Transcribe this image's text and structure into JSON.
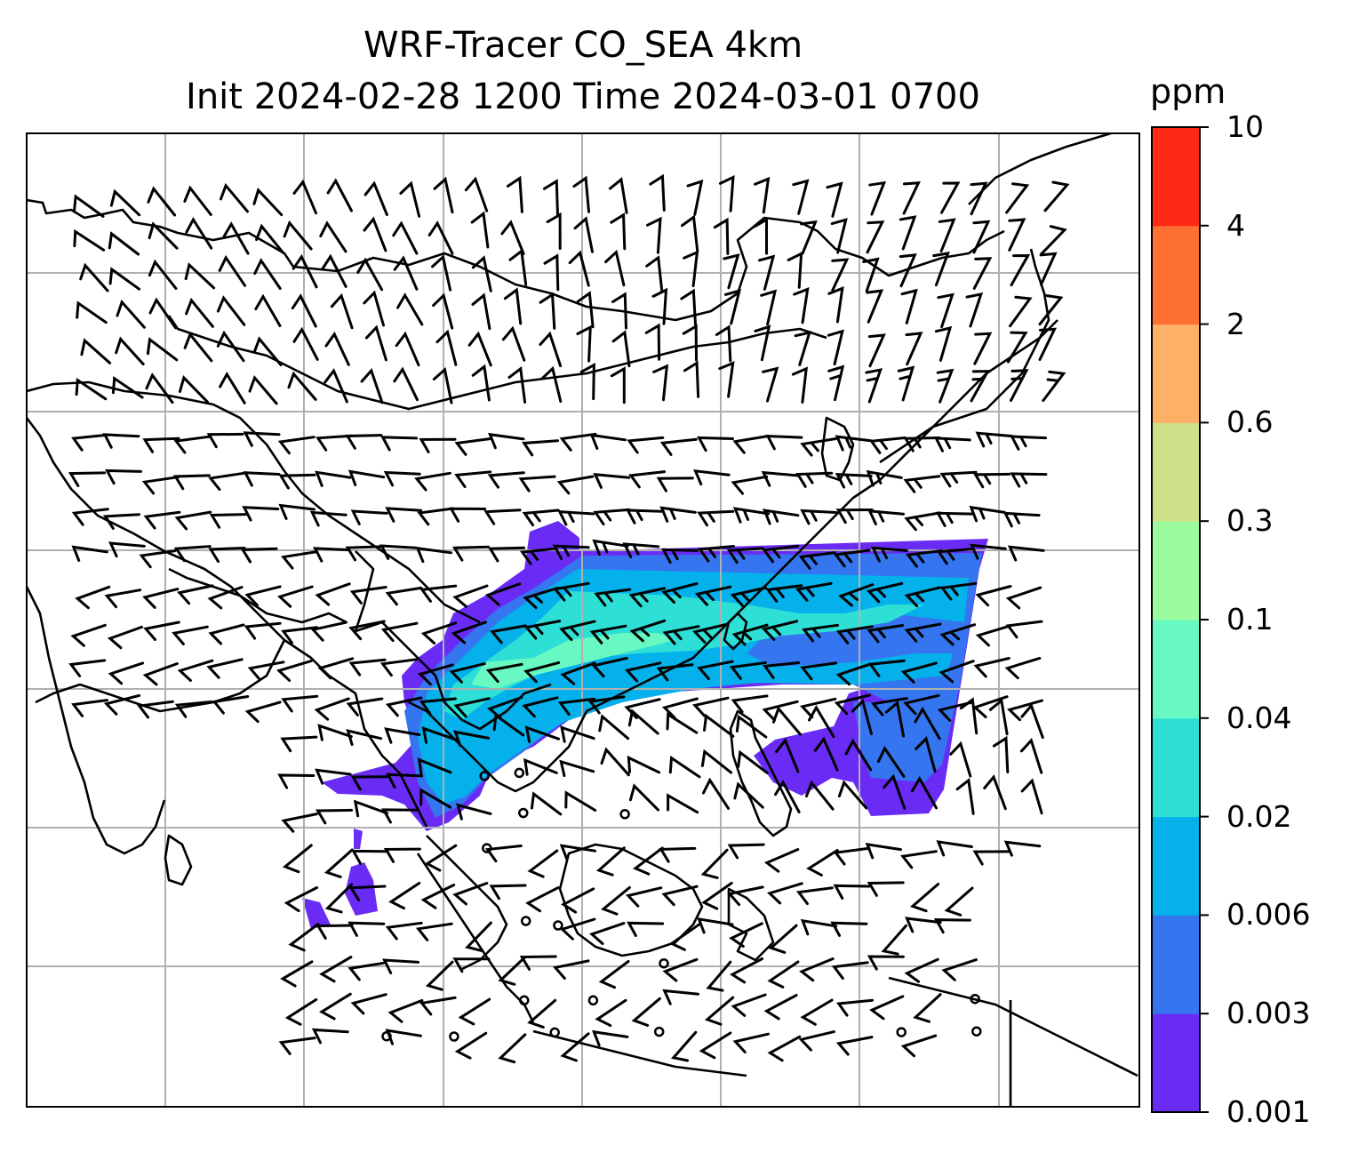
{
  "title": {
    "line1": "WRF-Tracer CO_SEA 4km",
    "line2": "Init 2024-02-28 1200 Time 2024-03-01 0700"
  },
  "colorbar": {
    "unit": "ppm",
    "levels": [
      "0.001",
      "0.003",
      "0.006",
      "0.02",
      "0.04",
      "0.1",
      "0.3",
      "0.6",
      "2",
      "4",
      "10"
    ],
    "colors": [
      "#6a2cf5",
      "#3575f0",
      "#05b1ea",
      "#2edfd6",
      "#68f9c2",
      "#9cfa9f",
      "#cfe08a",
      "#feb067",
      "#ff7034",
      "#ff2a15"
    ]
  },
  "map": {
    "projection": "lat-lon",
    "gridlines": true,
    "coastlines": true,
    "wind_barbs": true,
    "field": "CO tracer concentration"
  }
}
